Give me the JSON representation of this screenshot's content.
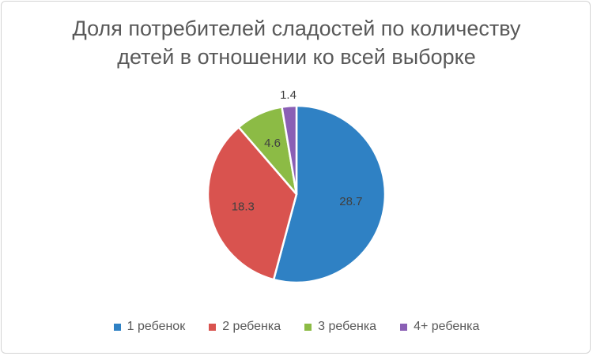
{
  "chart_data": {
    "type": "pie",
    "title_lines": [
      "Доля потребителей сладостей по количеству",
      "детей в отношении ко всей выборке"
    ],
    "categories": [
      "1 ребенок",
      "2 ребенка",
      "3 ребенка",
      "4+ ребенка"
    ],
    "values": [
      28.7,
      18.3,
      4.6,
      1.4
    ],
    "labels": [
      "28.7",
      "18.3",
      "4.6",
      "1.4"
    ],
    "colors": [
      "#2f81c4",
      "#d9534f",
      "#8cbb45",
      "#8a5fb5"
    ],
    "legend_position": "bottom",
    "start_angle": "top, clockwise"
  }
}
